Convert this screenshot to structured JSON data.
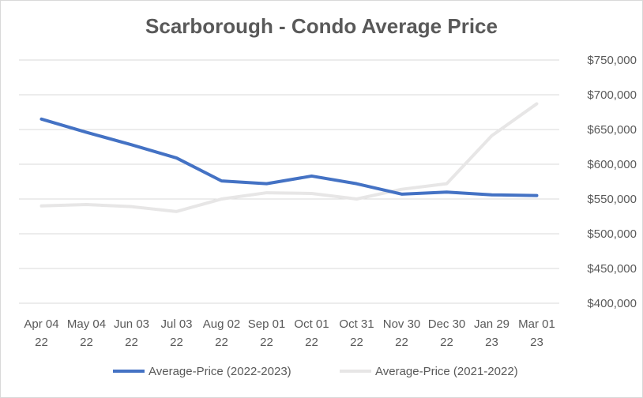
{
  "chart_data": {
    "type": "line",
    "title": "Scarborough - Condo Average Price",
    "xlabel": "",
    "ylabel": "",
    "ylim": [
      400000,
      750000
    ],
    "y_tick_step": 50000,
    "y_ticks": [
      "$400,000",
      "$450,000",
      "$500,000",
      "$550,000",
      "$600,000",
      "$650,000",
      "$700,000",
      "$750,000"
    ],
    "y_axis_position": "right",
    "grid": true,
    "legend_position": "bottom",
    "categories": [
      [
        "Apr 04",
        "22"
      ],
      [
        "May 04",
        "22"
      ],
      [
        "Jun 03",
        "22"
      ],
      [
        "Jul 03",
        "22"
      ],
      [
        "Aug 02",
        "22"
      ],
      [
        "Sep 01",
        "22"
      ],
      [
        "Oct 01",
        "22"
      ],
      [
        "Oct 31",
        "22"
      ],
      [
        "Nov 30",
        "22"
      ],
      [
        "Dec 30",
        "22"
      ],
      [
        "Jan 29",
        "23"
      ],
      [
        "Mar 01",
        "23"
      ]
    ],
    "series": [
      {
        "name": "Average-Price (2022-2023)",
        "color": "#4472C4",
        "values": [
          665000,
          646000,
          628000,
          609000,
          576000,
          572000,
          583000,
          572000,
          557000,
          560000,
          556000,
          555000
        ]
      },
      {
        "name": "Average-Price (2021-2022)",
        "color": "#E7E6E6",
        "values": [
          540000,
          542000,
          539000,
          532000,
          550000,
          559000,
          558000,
          550000,
          564000,
          572000,
          641000,
          687000
        ]
      }
    ]
  }
}
